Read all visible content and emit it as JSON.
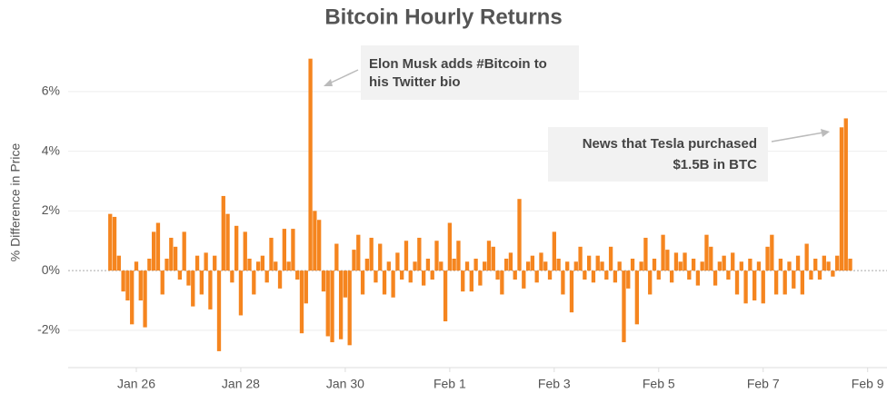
{
  "chart_data": {
    "type": "bar",
    "title": "Bitcoin Hourly Returns",
    "y_label": "% Difference in Price",
    "color": "#f5851f",
    "grid": true,
    "ylim": [
      -3.25,
      7.85
    ],
    "yticks": [
      {
        "value": -2,
        "label": "-2%"
      },
      {
        "value": 0,
        "label": "0%"
      },
      {
        "value": 2,
        "label": "2%"
      },
      {
        "value": 4,
        "label": "4%"
      },
      {
        "value": 6,
        "label": "6%"
      }
    ],
    "categories": [
      null,
      null,
      null,
      null,
      null,
      null,
      "Jan 26",
      null,
      null,
      null,
      null,
      null,
      null,
      null,
      null,
      null,
      null,
      null,
      null,
      null,
      null,
      null,
      null,
      null,
      null,
      null,
      null,
      null,
      null,
      null,
      "Jan 28",
      null,
      null,
      null,
      null,
      null,
      null,
      null,
      null,
      null,
      null,
      null,
      null,
      null,
      null,
      null,
      null,
      null,
      null,
      null,
      null,
      null,
      null,
      null,
      "Jan 30",
      null,
      null,
      null,
      null,
      null,
      null,
      null,
      null,
      null,
      null,
      null,
      null,
      null,
      null,
      null,
      null,
      null,
      null,
      null,
      null,
      null,
      null,
      null,
      "Feb 1",
      null,
      null,
      null,
      null,
      null,
      null,
      null,
      null,
      null,
      null,
      null,
      null,
      null,
      null,
      null,
      null,
      null,
      null,
      null,
      null,
      null,
      null,
      null,
      "Feb 3",
      null,
      null,
      null,
      null,
      null,
      null,
      null,
      null,
      null,
      null,
      null,
      null,
      null,
      null,
      null,
      null,
      null,
      null,
      null,
      null,
      null,
      null,
      null,
      "Feb 5",
      null,
      null,
      null,
      null,
      null,
      null,
      null,
      null,
      null,
      null,
      null,
      null,
      null,
      null,
      null,
      null,
      null,
      null,
      null,
      null,
      null,
      null,
      null,
      "Feb 7",
      null,
      null,
      null,
      null,
      null,
      null,
      null,
      null,
      null,
      null,
      null,
      null,
      null,
      null,
      null,
      null,
      null,
      null,
      null,
      null,
      null,
      null,
      null,
      "Feb 9"
    ],
    "values": [
      1.9,
      1.8,
      0.5,
      -0.7,
      -1.0,
      -1.8,
      0.3,
      -1.0,
      -1.9,
      0.4,
      1.3,
      1.6,
      -0.8,
      0.4,
      1.1,
      0.8,
      -0.3,
      1.3,
      -0.5,
      -1.2,
      0.5,
      -0.8,
      0.6,
      -1.3,
      0.5,
      -2.7,
      2.5,
      1.9,
      -0.4,
      1.5,
      -1.5,
      1.3,
      0.4,
      -0.8,
      0.3,
      0.5,
      -0.4,
      1.1,
      0.3,
      -0.6,
      1.4,
      0.3,
      1.4,
      -0.3,
      -2.1,
      -1.1,
      7.1,
      2.0,
      1.7,
      -0.7,
      -2.2,
      -2.4,
      0.9,
      -2.3,
      -0.9,
      -2.5,
      0.7,
      1.2,
      -0.8,
      0.4,
      1.1,
      -0.4,
      0.9,
      -0.8,
      0.3,
      -0.9,
      0.6,
      -0.3,
      1.0,
      -0.4,
      0.3,
      1.1,
      -0.5,
      0.4,
      -0.3,
      1.0,
      0.3,
      -1.7,
      1.6,
      0.4,
      1.0,
      -0.7,
      0.3,
      -0.7,
      0.4,
      -0.5,
      0.3,
      1.0,
      0.8,
      -0.3,
      -0.8,
      0.4,
      0.6,
      -0.3,
      2.4,
      -0.6,
      0.3,
      0.5,
      -0.4,
      0.6,
      0.3,
      -0.3,
      1.3,
      0.4,
      -0.8,
      0.3,
      -1.4,
      0.3,
      0.8,
      -0.3,
      0.5,
      -0.4,
      0.5,
      0.3,
      -0.3,
      0.8,
      -0.4,
      0.3,
      -2.4,
      -0.6,
      0.4,
      -1.8,
      0.3,
      1.1,
      -0.8,
      0.4,
      -0.3,
      1.2,
      0.7,
      -0.4,
      0.6,
      0.3,
      0.6,
      -0.3,
      0.4,
      -0.5,
      0.3,
      1.2,
      0.8,
      -0.5,
      0.3,
      0.5,
      -0.3,
      0.6,
      -0.8,
      0.3,
      -1.1,
      0.4,
      -1.0,
      0.3,
      -1.1,
      0.8,
      1.2,
      -0.8,
      0.4,
      -0.8,
      0.3,
      -0.6,
      0.5,
      -0.8,
      0.9,
      -0.3,
      0.4,
      -0.3,
      0.5,
      0.3,
      -0.2,
      0.5,
      4.8,
      5.1,
      0.4,
      null,
      null,
      null,
      null
    ],
    "annotations": [
      {
        "lines": [
          "Elon Musk adds #Bitcoin to",
          "his Twitter bio"
        ]
      },
      {
        "lines": [
          "News that Tesla purchased",
          "$1.5B in BTC"
        ]
      }
    ]
  }
}
